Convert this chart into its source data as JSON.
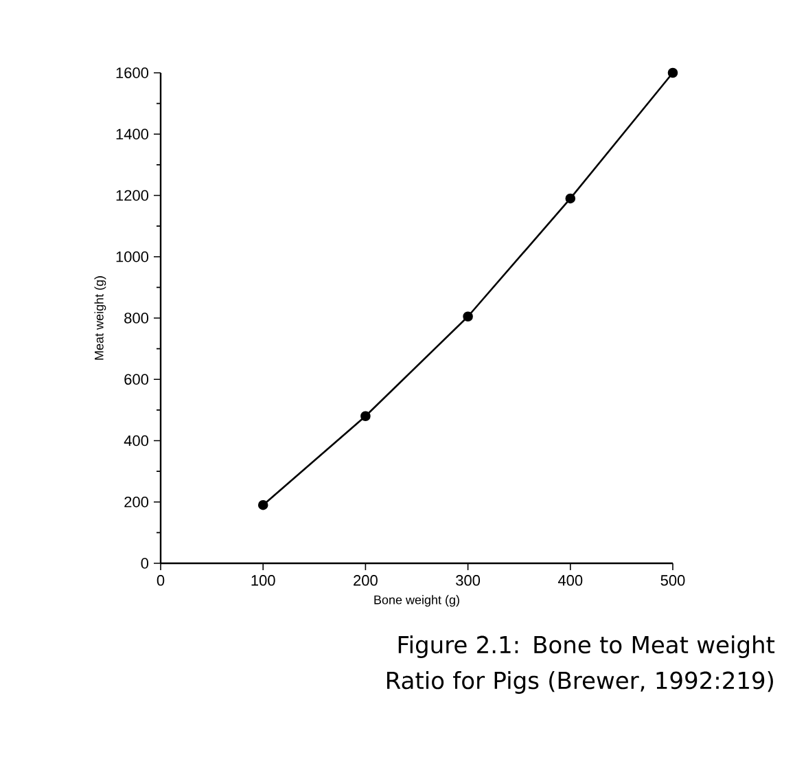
{
  "chart_data": {
    "type": "line",
    "xlabel": "Bone weight (g)",
    "ylabel": "Meat weight (g)",
    "x": [
      100,
      200,
      300,
      400,
      500
    ],
    "values": [
      190,
      480,
      805,
      1190,
      1600
    ],
    "color": "#000000",
    "xlim": [
      0,
      500
    ],
    "ylim": [
      0,
      1600
    ],
    "xticks": [
      0,
      100,
      200,
      300,
      400,
      500
    ],
    "yticks": [
      0,
      200,
      400,
      600,
      800,
      1000,
      1200,
      1400,
      1600
    ],
    "marker": "circle",
    "line_style": "solid",
    "annotations": [
      "Figure 2.1: Bone to Meat weight Ratio for Pigs (Brewer, 1992:219)"
    ]
  }
}
